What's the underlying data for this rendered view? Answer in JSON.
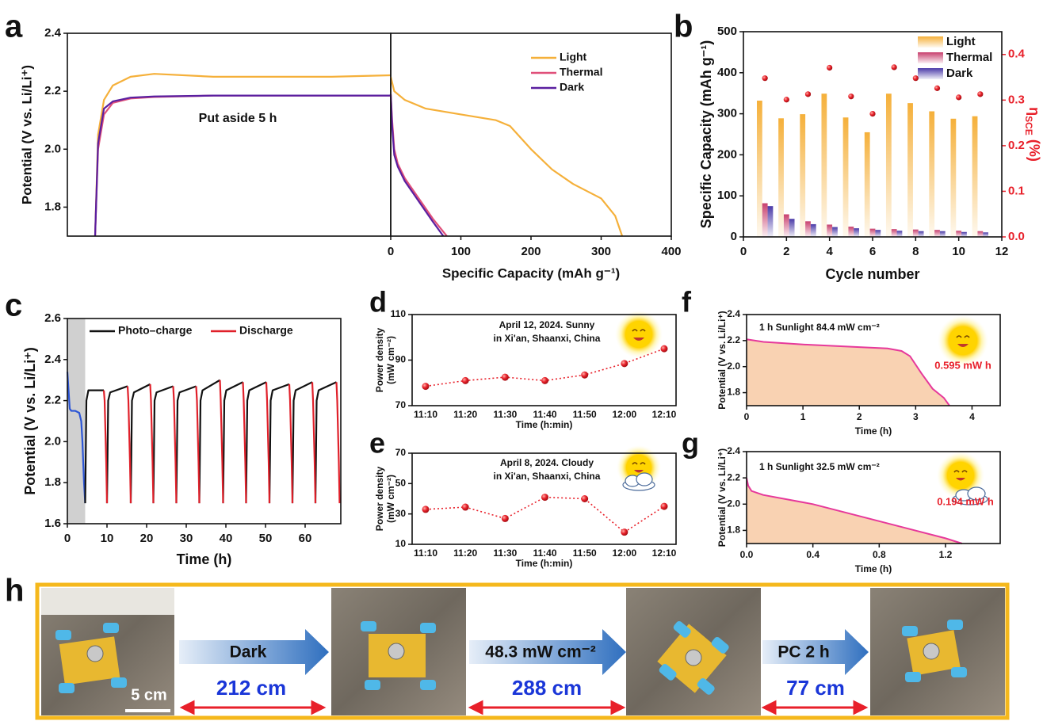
{
  "chart_data": [
    {
      "type": "line",
      "ylabel": "Potential (V vs. Li/Li⁺)",
      "annotations": [
        "Put aside 5 h"
      ],
      "xlim": [
        0,
        5
      ],
      "ylim": [
        1.7,
        2.4
      ],
      "yticks": [
        1.8,
        {
          "value": 2,
          "label": "2.0"
        },
        2.2,
        2.4
      ],
      "series": [
        {
          "name": "Light",
          "color": "#f5b03a",
          "x": [
            0,
            0.05,
            0.15,
            0.3,
            0.6,
            1,
            2,
            3,
            4,
            5
          ],
          "values": [
            1.7,
            2.05,
            2.17,
            2.22,
            2.25,
            2.26,
            2.25,
            2.25,
            2.25,
            2.255
          ]
        },
        {
          "name": "Thermal",
          "color": "#e0507a",
          "x": [
            0,
            0.05,
            0.15,
            0.3,
            0.6,
            1,
            2,
            3,
            4,
            5
          ],
          "values": [
            1.7,
            2.0,
            2.12,
            2.16,
            2.175,
            2.18,
            2.185,
            2.185,
            2.185,
            2.185
          ]
        },
        {
          "name": "Dark",
          "color": "#5a1fa0",
          "x": [
            0,
            0.05,
            0.15,
            0.3,
            0.6,
            1,
            2,
            3,
            4,
            5
          ],
          "values": [
            1.7,
            2.02,
            2.14,
            2.165,
            2.178,
            2.182,
            2.185,
            2.185,
            2.185,
            2.185
          ]
        }
      ]
    },
    {
      "type": "line",
      "xlabel": "Specific Capacity (mAh g⁻¹)",
      "xlim": [
        0,
        400
      ],
      "xticks": [
        0,
        100,
        200,
        300,
        400
      ],
      "ylim": [
        1.7,
        2.4
      ],
      "legend": "upper right",
      "series": [
        {
          "name": "Light",
          "color": "#f5b03a",
          "x": [
            0,
            5,
            20,
            50,
            100,
            150,
            170,
            200,
            230,
            260,
            300,
            320,
            330
          ],
          "values": [
            2.25,
            2.2,
            2.17,
            2.14,
            2.12,
            2.1,
            2.08,
            2.0,
            1.93,
            1.88,
            1.83,
            1.77,
            1.7
          ]
        },
        {
          "name": "Thermal",
          "color": "#e0507a",
          "x": [
            0,
            2,
            5,
            10,
            20,
            40,
            60,
            80
          ],
          "values": [
            2.19,
            2.1,
            2.0,
            1.95,
            1.9,
            1.83,
            1.76,
            1.7
          ]
        },
        {
          "name": "Dark",
          "color": "#5a1fa0",
          "x": [
            0,
            2,
            5,
            10,
            20,
            40,
            60,
            75
          ],
          "values": [
            2.19,
            2.08,
            1.98,
            1.94,
            1.89,
            1.82,
            1.75,
            1.7
          ]
        }
      ]
    },
    {
      "type": "bar",
      "xlabel": "Cycle number",
      "ylabel": "Specific Capacity (mAh g⁻¹)",
      "y2label": [
        "η",
        "SCE",
        " (%)"
      ],
      "x": [
        1,
        2,
        3,
        4,
        5,
        6,
        7,
        8,
        9,
        10,
        11
      ],
      "xlim": [
        0,
        12
      ],
      "xticks": [
        0,
        2,
        4,
        6,
        8,
        10,
        12
      ],
      "ylim": [
        0,
        500
      ],
      "yticks": [
        0,
        100,
        200,
        300,
        400,
        500
      ],
      "y2lim": [
        0,
        0.45
      ],
      "y2ticks": [
        {
          "value": 0,
          "label": "0.0"
        },
        0.1,
        0.2,
        0.3,
        0.4
      ],
      "legend": "upper right",
      "series": [
        {
          "name": "Light",
          "color": "#f5b03a",
          "values": [
            332,
            289,
            299,
            349,
            291,
            255,
            349,
            326,
            306,
            288,
            294
          ]
        },
        {
          "name": "Thermal",
          "color": "#c8406e",
          "values": [
            82,
            55,
            38,
            30,
            25,
            20,
            19,
            18,
            17,
            15,
            14
          ]
        },
        {
          "name": "Dark",
          "color": "#4a3aa8",
          "values": [
            75,
            44,
            31,
            24,
            21,
            17,
            15,
            14,
            14,
            12,
            11
          ]
        },
        {
          "color": "#e8202a",
          "axis": "y2",
          "values": [
            0.348,
            0.301,
            0.313,
            0.371,
            0.308,
            0.27,
            0.372,
            0.348,
            0.326,
            0.306,
            0.313
          ]
        }
      ]
    },
    {
      "type": "line",
      "xlabel": "Time (h)",
      "ylabel": "Potential (V vs. Li/Li⁺)",
      "xlim": [
        0,
        69
      ],
      "xticks": [
        0,
        10,
        20,
        30,
        40,
        50,
        60
      ],
      "ylim": [
        1.6,
        2.6
      ],
      "yticks": [
        1.6,
        1.8,
        {
          "value": 2,
          "label": "2.0"
        },
        2.2,
        2.4,
        2.6
      ],
      "shade": [
        0,
        4.5
      ],
      "legend": "upper center",
      "series": [
        {
          "color": "#2b55d6",
          "x": [
            0,
            0.3,
            0.6,
            1,
            2,
            3,
            3.5,
            3.8,
            4.0,
            4.2,
            4.5
          ],
          "values": [
            2.34,
            2.25,
            2.16,
            2.15,
            2.15,
            2.14,
            2.1,
            2.0,
            1.9,
            1.8,
            1.7
          ]
        },
        {
          "name": "Photo–charge",
          "color": "#111111",
          "x": [
            4.5,
            4.8,
            5.3,
            9.2,
            null,
            10,
            10.3,
            10.8,
            15.2,
            null,
            16,
            16.3,
            16.8,
            20.9,
            null,
            21.7,
            22.0,
            22.5,
            26.7,
            null,
            27.5,
            27.8,
            28.3,
            32.5,
            null,
            33.3,
            33.6,
            34.1,
            38.5,
            null,
            39.3,
            39.6,
            40.1,
            44.3,
            null,
            45.1,
            45.4,
            45.9,
            50.2,
            null,
            51,
            51.3,
            51.8,
            56.0,
            null,
            56.8,
            57.1,
            57.6,
            61.8,
            null,
            62.6,
            62.9,
            63.4,
            67.9
          ],
          "values": [
            1.7,
            2.2,
            2.25,
            2.25,
            null,
            1.7,
            2.2,
            2.24,
            2.27,
            null,
            1.7,
            2.2,
            2.24,
            2.28,
            null,
            1.7,
            2.2,
            2.24,
            2.27,
            null,
            1.7,
            2.2,
            2.24,
            2.27,
            null,
            1.7,
            2.2,
            2.25,
            2.3,
            null,
            1.7,
            2.2,
            2.25,
            2.29,
            null,
            1.7,
            2.2,
            2.25,
            2.29,
            null,
            1.7,
            2.2,
            2.25,
            2.28,
            null,
            1.7,
            2.2,
            2.25,
            2.29,
            null,
            1.7,
            2.2,
            2.25,
            2.29
          ]
        },
        {
          "name": "Discharge",
          "color": "#e0202a",
          "x": [
            9.2,
            9.4,
            9.8,
            10,
            null,
            15.2,
            15.4,
            15.8,
            16,
            null,
            20.9,
            21.1,
            21.5,
            21.7,
            null,
            26.7,
            26.9,
            27.3,
            27.5,
            null,
            32.5,
            32.7,
            33.1,
            33.3,
            null,
            38.5,
            38.7,
            39.1,
            39.3,
            null,
            44.3,
            44.5,
            44.9,
            45.1,
            null,
            50.2,
            50.4,
            50.8,
            51,
            null,
            56.0,
            56.2,
            56.6,
            56.8,
            null,
            61.8,
            62.0,
            62.4,
            62.6,
            null,
            67.9,
            68.1,
            68.5,
            68.7
          ],
          "values": [
            2.25,
            2.2,
            1.9,
            1.7,
            null,
            2.27,
            2.2,
            1.9,
            1.7,
            null,
            2.28,
            2.2,
            1.9,
            1.7,
            null,
            2.27,
            2.2,
            1.9,
            1.7,
            null,
            2.27,
            2.2,
            1.9,
            1.7,
            null,
            2.3,
            2.2,
            1.9,
            1.7,
            null,
            2.29,
            2.2,
            1.9,
            1.7,
            null,
            2.29,
            2.2,
            1.9,
            1.7,
            null,
            2.28,
            2.2,
            1.9,
            1.7,
            null,
            2.29,
            2.2,
            1.9,
            1.7,
            null,
            2.29,
            2.2,
            1.9,
            1.7
          ]
        }
      ]
    },
    {
      "type": "line",
      "xlabel": "Time (h:min)",
      "ylabel": [
        "Power density",
        "(mW cm⁻²)"
      ],
      "annotations": [
        "April 12, 2024. Sunny",
        "in Xi'an, Shaanxi, China"
      ],
      "categories": [
        "11:10",
        "11:20",
        "11:30",
        "11:40",
        "11:50",
        "12:00",
        "12:10"
      ],
      "ylim": [
        70,
        110
      ],
      "yticks": [
        70,
        90,
        110
      ],
      "markers": true,
      "linestyle": "dotted",
      "series": [
        {
          "color": "#e8202a",
          "values": [
            78.5,
            81,
            82.5,
            81,
            83.5,
            88.5,
            95
          ]
        }
      ]
    },
    {
      "type": "line",
      "xlabel": "Time (h:min)",
      "ylabel": [
        "Power density",
        "(mW cm⁻²)"
      ],
      "annotations": [
        "April 8, 2024. Cloudy",
        "in Xi'an, Shaanxi, China"
      ],
      "categories": [
        "11:10",
        "11:20",
        "11:30",
        "11:40",
        "11:50",
        "12:00",
        "12:10"
      ],
      "ylim": [
        10,
        70
      ],
      "yticks": [
        10,
        30,
        50,
        70
      ],
      "markers": true,
      "linestyle": "dotted",
      "series": [
        {
          "color": "#e8202a",
          "values": [
            33,
            34.5,
            27,
            41,
            40,
            18,
            35
          ]
        }
      ]
    },
    {
      "type": "area",
      "xlabel": "Time (h)",
      "ylabel": "Potential (V vs. Li/Li⁺)",
      "annotations": [
        "1 h Sunlight 84.4 mW cm⁻²",
        "0.595 mW h"
      ],
      "xlim": [
        0,
        4.5
      ],
      "xticks": [
        0,
        1,
        2,
        3,
        4
      ],
      "ylim": [
        1.7,
        2.4
      ],
      "yticks": [
        1.8,
        {
          "value": 2,
          "label": "2.0"
        },
        2.2,
        2.4
      ],
      "series": [
        {
          "color": "#e6399b",
          "fill": "#f9d2b2",
          "x": [
            0,
            0.3,
            1,
            2,
            2.5,
            2.75,
            2.9,
            3.1,
            3.3,
            3.5,
            3.6
          ],
          "values": [
            2.21,
            2.19,
            2.17,
            2.15,
            2.14,
            2.12,
            2.08,
            1.95,
            1.83,
            1.76,
            1.7
          ]
        }
      ]
    },
    {
      "type": "area",
      "xlabel": "Time (h)",
      "ylabel": "Potential (V vs. Li/Li⁺)",
      "annotations": [
        "1 h Sunlight 32.5 mW cm⁻²",
        "0.194 mW h"
      ],
      "xlim": [
        0,
        1.53
      ],
      "xticks": [
        {
          "value": 0,
          "label": "0.0"
        },
        0.4,
        0.8,
        1.2
      ],
      "ylim": [
        1.7,
        2.4
      ],
      "yticks": [
        1.8,
        {
          "value": 2,
          "label": "2.0"
        },
        2.2,
        2.4
      ],
      "series": [
        {
          "color": "#e6399b",
          "fill": "#f9d2b2",
          "x": [
            0,
            0.01,
            0.03,
            0.1,
            0.4,
            0.8,
            1.2,
            1.3
          ],
          "values": [
            2.2,
            2.14,
            2.1,
            2.07,
            2.0,
            1.87,
            1.74,
            1.7
          ]
        }
      ]
    }
  ],
  "panel_labels": [
    "a",
    "b",
    "c",
    "d",
    "e",
    "f",
    "g",
    "h"
  ],
  "photo_strip": {
    "scale_bar": "5 cm",
    "steps": [
      {
        "label": "Dark",
        "distance": "212 cm"
      },
      {
        "label": "48.3 mW cm⁻²",
        "distance": "288 cm"
      },
      {
        "label": "PC 2 h",
        "distance": "77 cm"
      }
    ]
  }
}
